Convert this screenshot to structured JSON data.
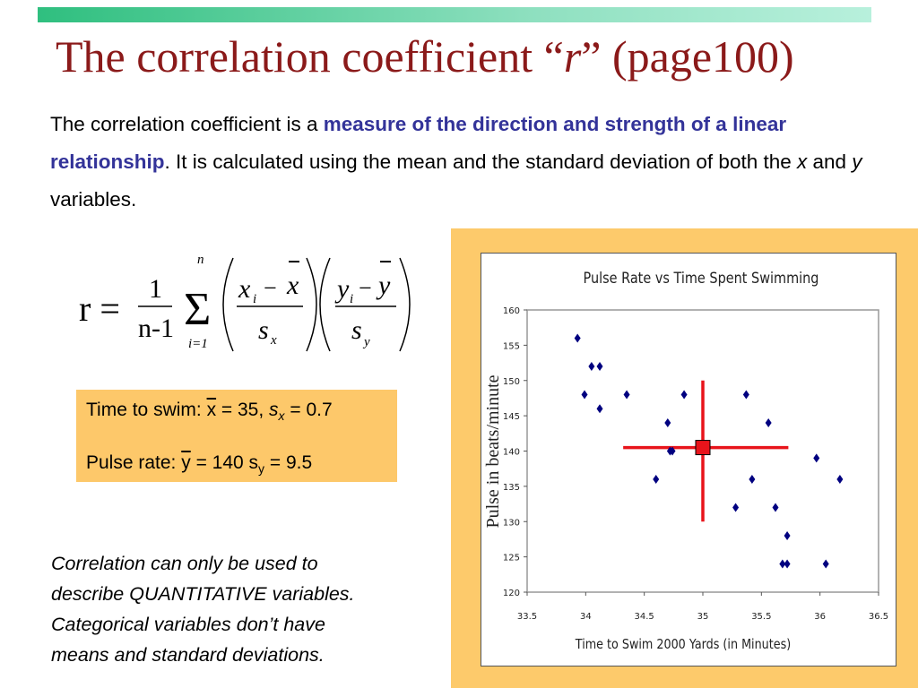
{
  "slide": {
    "title_pre": "The correlation coefficient “",
    "title_var": "r",
    "title_post": "” (page100)",
    "body_1": "The correlation coefficient is a ",
    "body_highlight": "measure of the direction and strength of a linear relationship",
    "body_2": ". It is calculated using the mean and the standard deviation of both the ",
    "body_x": "x",
    "body_and": " and ",
    "body_y": "y",
    "body_3": " variables.",
    "formula": {
      "r": "r =",
      "num": "1",
      "den": "n-1",
      "top": "n",
      "bottom": "i=1",
      "xi": "x",
      "i": "i",
      "minus": "−",
      "xbar": "x",
      "sx": "s",
      "sub_x": "x",
      "yi": "y",
      "ybar": "y",
      "sy": "s",
      "sub_y": "y"
    },
    "stats": {
      "swim_label": "Time to swim: ",
      "swim_xbar": "x",
      "swim_mean": " = 35, ",
      "swim_s": "s",
      "swim_sub": "x",
      "swim_sd": " = 0.7",
      "pulse_label": "Pulse rate: ",
      "pulse_ybar": "y",
      "pulse_mean": " = 140 s",
      "pulse_sub": "y",
      "pulse_sd": " = 9.5"
    },
    "note_lines": [
      "Correlation can only be used to",
      "describe QUANTITATIVE variables.",
      "Categorical variables don’t have",
      "means and standard deviations."
    ]
  },
  "colors": {
    "title": "#8b1a1a",
    "highlight": "#333399",
    "panel": "#fdca6b",
    "point": "#000080",
    "mean": "#e8141b"
  },
  "chart_data": {
    "type": "scatter",
    "title": "Pulse Rate vs Time Spent Swimming",
    "xlabel": "Time to Swim 2000 Yards (in Minutes)",
    "ylabel": "Pulse in beats/minute",
    "xlim": [
      33.5,
      36.5
    ],
    "ylim": [
      120,
      160
    ],
    "xticks": [
      "33.5",
      "34",
      "34.5",
      "35",
      "35.5",
      "36",
      "36.5"
    ],
    "yticks": [
      "120",
      "125",
      "130",
      "135",
      "140",
      "145",
      "150",
      "155",
      "160"
    ],
    "points": [
      [
        33.93,
        156
      ],
      [
        34.05,
        152
      ],
      [
        34.12,
        152
      ],
      [
        33.99,
        148
      ],
      [
        34.12,
        146
      ],
      [
        34.35,
        148
      ],
      [
        34.7,
        144
      ],
      [
        34.72,
        140
      ],
      [
        34.74,
        140
      ],
      [
        34.84,
        148
      ],
      [
        34.6,
        136
      ],
      [
        35.37,
        148
      ],
      [
        35.56,
        144
      ],
      [
        35.42,
        136
      ],
      [
        35.28,
        132
      ],
      [
        35.62,
        132
      ],
      [
        35.72,
        128
      ],
      [
        35.68,
        124
      ],
      [
        35.72,
        124
      ],
      [
        35.97,
        139
      ],
      [
        36.17,
        136
      ],
      [
        36.05,
        124
      ]
    ],
    "mean_point": [
      35,
      140.5
    ],
    "mean_cross": {
      "x_range": [
        34.32,
        35.73
      ],
      "y_range": [
        130,
        150
      ]
    }
  }
}
